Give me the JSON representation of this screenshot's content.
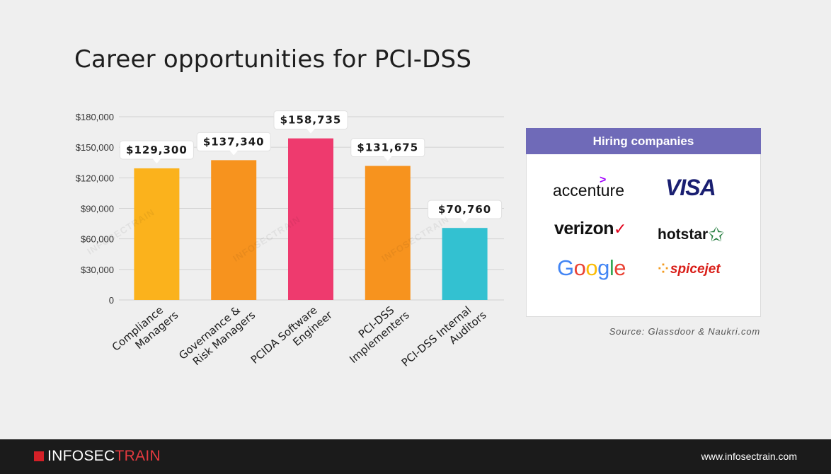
{
  "title": "Career opportunities for PCI-DSS",
  "chart_data": {
    "type": "bar",
    "categories": [
      [
        "Compliance",
        "Managers"
      ],
      [
        "Governance &",
        "Risk Managers"
      ],
      [
        "PCIDA Software",
        "Engineer"
      ],
      [
        "PCI-DSS",
        "Implementers"
      ],
      [
        "PCI-DSS Internal",
        "Auditors"
      ]
    ],
    "values": [
      129300,
      137340,
      158735,
      131675,
      70760
    ],
    "data_labels": [
      "$129,300",
      "$137,340",
      "$158,735",
      "$131,675",
      "$70,760"
    ],
    "colors": [
      "#fbb21c",
      "#f7931e",
      "#ee3a6e",
      "#f7931e",
      "#33c1d1"
    ],
    "yticks": [
      "0",
      "$30,000",
      "$60,000",
      "$90,000",
      "$120,000",
      "$150,000",
      "$180,000"
    ],
    "ylim": [
      0,
      180000
    ],
    "grid": true,
    "legend": "none"
  },
  "panel": {
    "header": "Hiring companies",
    "logos": {
      "accenture": "accenture",
      "visa": "VISA",
      "verizon": "verizon",
      "hotstar": "hotstar",
      "google": "Google",
      "spicejet": "spicejet"
    }
  },
  "source": "Source: Glassdoor & Naukri.com",
  "footer": {
    "brand_a": "INFOSEC",
    "brand_b": "TRAIN",
    "website": "www.infosectrain.com"
  },
  "watermark": "INFOSECTRAIN",
  "colors": {
    "background": "#efefef",
    "panel_header": "#6f6ab8",
    "footer": "#1b1b1b",
    "brand_accent": "#e53a3f"
  }
}
